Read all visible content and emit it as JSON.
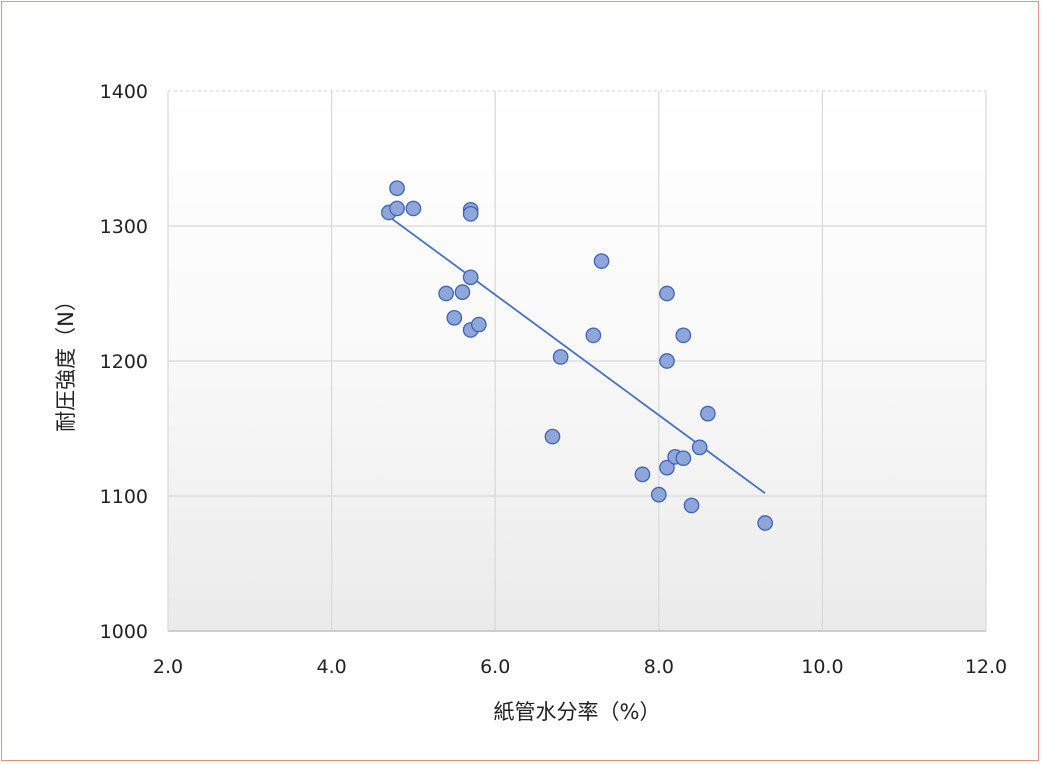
{
  "chart_data": {
    "type": "scatter",
    "title": "",
    "xlabel": "紙管水分率（%）",
    "ylabel": "耐圧強度（N）",
    "xlim": [
      2.0,
      12.0
    ],
    "ylim": [
      1000,
      1400
    ],
    "x_ticks": [
      "2.0",
      "4.0",
      "6.0",
      "8.0",
      "10.0",
      "12.0"
    ],
    "y_ticks": [
      "1000",
      "1100",
      "1200",
      "1300",
      "1400"
    ],
    "grid": true,
    "legend": "none",
    "colors": {
      "marker_fill": "#8ea6d9",
      "marker_stroke": "#3f63b5",
      "trendline": "#4472c4",
      "grid": "#d9d9d9",
      "frame_border": "#e8907e"
    },
    "points": [
      {
        "x": 4.7,
        "y": 1310
      },
      {
        "x": 4.8,
        "y": 1328
      },
      {
        "x": 4.8,
        "y": 1313
      },
      {
        "x": 5.0,
        "y": 1313
      },
      {
        "x": 5.7,
        "y": 1312
      },
      {
        "x": 5.7,
        "y": 1309
      },
      {
        "x": 5.4,
        "y": 1250
      },
      {
        "x": 5.6,
        "y": 1251
      },
      {
        "x": 5.7,
        "y": 1262
      },
      {
        "x": 5.5,
        "y": 1232
      },
      {
        "x": 5.7,
        "y": 1223
      },
      {
        "x": 5.8,
        "y": 1227
      },
      {
        "x": 6.8,
        "y": 1203
      },
      {
        "x": 7.2,
        "y": 1219
      },
      {
        "x": 7.3,
        "y": 1274
      },
      {
        "x": 6.7,
        "y": 1144
      },
      {
        "x": 7.8,
        "y": 1116
      },
      {
        "x": 8.0,
        "y": 1101
      },
      {
        "x": 8.1,
        "y": 1250
      },
      {
        "x": 8.1,
        "y": 1200
      },
      {
        "x": 8.3,
        "y": 1219
      },
      {
        "x": 8.1,
        "y": 1121
      },
      {
        "x": 8.2,
        "y": 1129
      },
      {
        "x": 8.3,
        "y": 1128
      },
      {
        "x": 8.5,
        "y": 1136
      },
      {
        "x": 8.6,
        "y": 1161
      },
      {
        "x": 8.4,
        "y": 1093
      },
      {
        "x": 9.3,
        "y": 1080
      }
    ],
    "trendline": {
      "type": "linear",
      "x": [
        4.7,
        9.3
      ],
      "y": [
        1307,
        1102
      ]
    }
  }
}
